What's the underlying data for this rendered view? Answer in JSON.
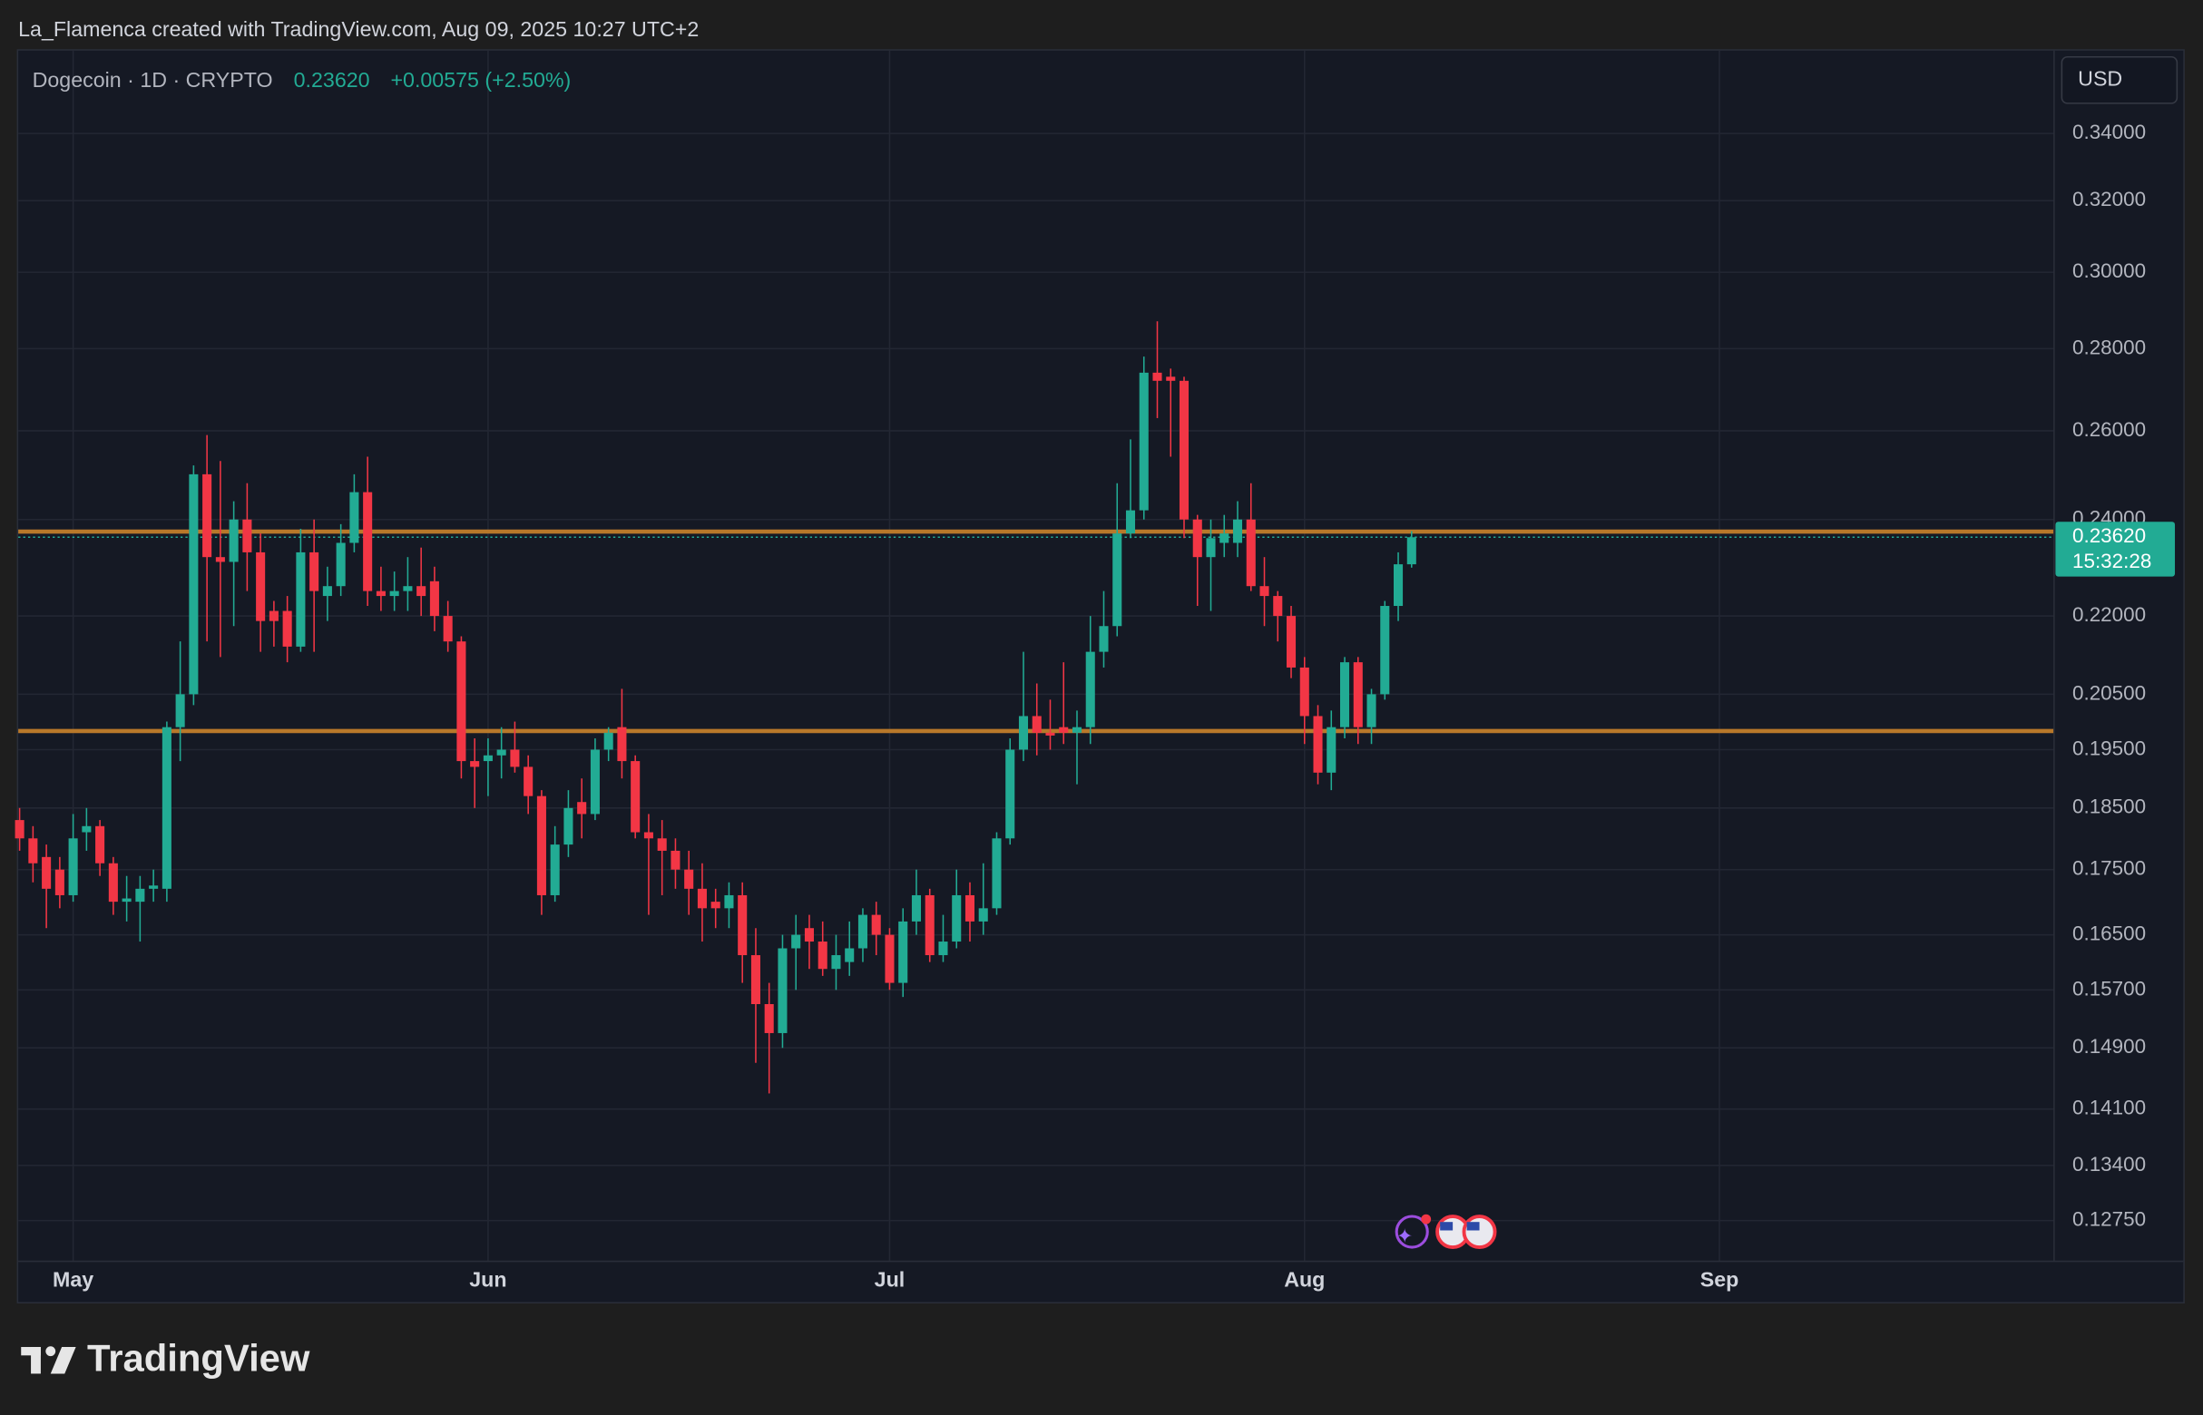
{
  "header": "La_Flamenca created with TradingView.com, Aug 09, 2025 10:27 UTC+2",
  "footer": "TradingView",
  "chart_data": {
    "type": "candlestick",
    "title": "Dogecoin · 1D · CRYPTO",
    "last": {
      "value": 0.2362,
      "label": "0.23620"
    },
    "change": "+0.00575 (+2.50%)",
    "currency": "USD",
    "countdown": "15:32:28",
    "up_color": "#22ab94",
    "down_color": "#f23645",
    "log_scale": true,
    "grid": true,
    "hlines": [
      0.2374,
      0.1983
    ],
    "hline_color": "#b8782a",
    "open": [
      0.183,
      0.18,
      0.177,
      0.175,
      0.171,
      0.181,
      0.182,
      0.176,
      0.17,
      0.17,
      0.172,
      0.172,
      0.199,
      0.205,
      0.25,
      0.232,
      0.231,
      0.24,
      0.233,
      0.221,
      0.221,
      0.214,
      0.233,
      0.224,
      0.226,
      0.235,
      0.246,
      0.225,
      0.224,
      0.225,
      0.226,
      0.227,
      0.22,
      0.215,
      0.193,
      0.193,
      0.194,
      0.195,
      0.192,
      0.187,
      0.171,
      0.179,
      0.186,
      0.184,
      0.195,
      0.199,
      0.193,
      0.181,
      0.18,
      0.178,
      0.175,
      0.172,
      0.17,
      0.169,
      0.171,
      0.162,
      0.155,
      0.151,
      0.163,
      0.166,
      0.164,
      0.16,
      0.161,
      0.163,
      0.168,
      0.165,
      0.158,
      0.167,
      0.171,
      0.162,
      0.164,
      0.171,
      0.167,
      0.169,
      0.18,
      0.195,
      0.201,
      0.198,
      0.199,
      0.198,
      0.199,
      0.213,
      0.218,
      0.237,
      0.242,
      0.274,
      0.273,
      0.272,
      0.24,
      0.232,
      0.235,
      0.235,
      0.24,
      0.226,
      0.224,
      0.22,
      0.21,
      0.201,
      0.191,
      0.199,
      0.211,
      0.199,
      0.205,
      0.222,
      0.2305
    ],
    "high": [
      0.185,
      0.182,
      0.179,
      0.177,
      0.184,
      0.185,
      0.183,
      0.177,
      0.174,
      0.174,
      0.175,
      0.2,
      0.215,
      0.252,
      0.259,
      0.253,
      0.244,
      0.248,
      0.237,
      0.223,
      0.224,
      0.238,
      0.24,
      0.23,
      0.239,
      0.25,
      0.254,
      0.23,
      0.229,
      0.232,
      0.234,
      0.23,
      0.223,
      0.216,
      0.197,
      0.197,
      0.199,
      0.2,
      0.194,
      0.188,
      0.182,
      0.188,
      0.19,
      0.197,
      0.199,
      0.206,
      0.194,
      0.184,
      0.183,
      0.18,
      0.178,
      0.176,
      0.172,
      0.173,
      0.173,
      0.166,
      0.158,
      0.165,
      0.168,
      0.168,
      0.167,
      0.165,
      0.167,
      0.169,
      0.17,
      0.166,
      0.169,
      0.175,
      0.172,
      0.168,
      0.175,
      0.173,
      0.176,
      0.181,
      0.197,
      0.213,
      0.207,
      0.204,
      0.211,
      0.202,
      0.22,
      0.225,
      0.248,
      0.258,
      0.278,
      0.287,
      0.275,
      0.273,
      0.241,
      0.24,
      0.241,
      0.244,
      0.248,
      0.232,
      0.225,
      0.222,
      0.212,
      0.203,
      0.202,
      0.212,
      0.212,
      0.206,
      0.223,
      0.233,
      0.2375
    ],
    "low": [
      0.178,
      0.173,
      0.166,
      0.169,
      0.17,
      0.178,
      0.174,
      0.168,
      0.167,
      0.164,
      0.17,
      0.17,
      0.193,
      0.203,
      0.215,
      0.212,
      0.218,
      0.225,
      0.213,
      0.214,
      0.211,
      0.213,
      0.213,
      0.219,
      0.224,
      0.233,
      0.222,
      0.221,
      0.221,
      0.221,
      0.22,
      0.217,
      0.213,
      0.19,
      0.185,
      0.187,
      0.19,
      0.191,
      0.184,
      0.168,
      0.17,
      0.177,
      0.18,
      0.183,
      0.193,
      0.19,
      0.18,
      0.168,
      0.171,
      0.172,
      0.168,
      0.164,
      0.166,
      0.166,
      0.158,
      0.147,
      0.143,
      0.149,
      0.157,
      0.16,
      0.159,
      0.157,
      0.159,
      0.161,
      0.162,
      0.157,
      0.156,
      0.165,
      0.161,
      0.161,
      0.163,
      0.164,
      0.165,
      0.168,
      0.179,
      0.193,
      0.194,
      0.195,
      0.196,
      0.189,
      0.196,
      0.21,
      0.216,
      0.236,
      0.24,
      0.263,
      0.254,
      0.236,
      0.222,
      0.221,
      0.232,
      0.232,
      0.225,
      0.218,
      0.215,
      0.208,
      0.196,
      0.189,
      0.188,
      0.197,
      0.196,
      0.196,
      0.204,
      0.219,
      0.2298
    ],
    "close": [
      0.18,
      0.176,
      0.172,
      0.171,
      0.18,
      0.182,
      0.176,
      0.17,
      0.1705,
      0.172,
      0.1725,
      0.199,
      0.205,
      0.25,
      0.232,
      0.231,
      0.24,
      0.233,
      0.219,
      0.219,
      0.214,
      0.233,
      0.225,
      0.226,
      0.235,
      0.246,
      0.225,
      0.224,
      0.225,
      0.226,
      0.224,
      0.22,
      0.215,
      0.193,
      0.192,
      0.194,
      0.195,
      0.192,
      0.187,
      0.171,
      0.179,
      0.185,
      0.184,
      0.195,
      0.198,
      0.193,
      0.181,
      0.18,
      0.178,
      0.175,
      0.172,
      0.169,
      0.169,
      0.171,
      0.162,
      0.155,
      0.151,
      0.163,
      0.165,
      0.164,
      0.16,
      0.162,
      0.163,
      0.168,
      0.165,
      0.158,
      0.167,
      0.171,
      0.162,
      0.164,
      0.171,
      0.167,
      0.169,
      0.18,
      0.195,
      0.201,
      0.198,
      0.1975,
      0.198,
      0.199,
      0.213,
      0.218,
      0.237,
      0.242,
      0.274,
      0.272,
      0.272,
      0.24,
      0.232,
      0.236,
      0.237,
      0.24,
      0.226,
      0.224,
      0.22,
      0.21,
      0.201,
      0.191,
      0.199,
      0.211,
      0.199,
      0.205,
      0.222,
      0.2305,
      0.2362
    ],
    "xlim": [
      -0.1,
      152
    ],
    "xticks": [
      {
        "value": 4,
        "label": "May"
      },
      {
        "value": 35,
        "label": "Jun"
      },
      {
        "value": 65,
        "label": "Jul"
      },
      {
        "value": 96,
        "label": "Aug"
      },
      {
        "value": 127,
        "label": "Sep"
      }
    ],
    "ylim": [
      0.1229,
      0.3664
    ],
    "yticks": [
      {
        "value": 0.34,
        "label": "0.34000"
      },
      {
        "value": 0.32,
        "label": "0.32000"
      },
      {
        "value": 0.3,
        "label": "0.30000"
      },
      {
        "value": 0.28,
        "label": "0.28000"
      },
      {
        "value": 0.26,
        "label": "0.26000"
      },
      {
        "value": 0.24,
        "label": "0.24000"
      },
      {
        "value": 0.22,
        "label": "0.22000"
      },
      {
        "value": 0.205,
        "label": "0.20500"
      },
      {
        "value": 0.195,
        "label": "0.19500"
      },
      {
        "value": 0.185,
        "label": "0.18500"
      },
      {
        "value": 0.175,
        "label": "0.17500"
      },
      {
        "value": 0.165,
        "label": "0.16500"
      },
      {
        "value": 0.157,
        "label": "0.15700"
      },
      {
        "value": 0.149,
        "label": "0.14900"
      },
      {
        "value": 0.141,
        "label": "0.14100"
      },
      {
        "value": 0.134,
        "label": "0.13400"
      },
      {
        "value": 0.1275,
        "label": "0.12750"
      }
    ]
  }
}
